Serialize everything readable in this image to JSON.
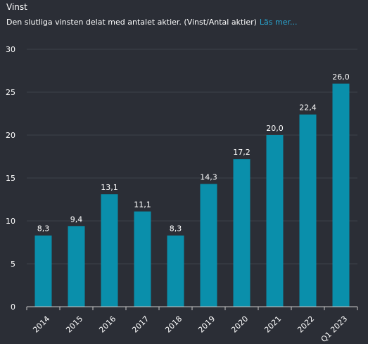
{
  "header": {
    "title": "Vinst",
    "subtitle": "Den slutliga vinsten delat med antalet aktier. (Vinst/Antal aktier)",
    "read_more": "Läs mer..."
  },
  "colors": {
    "background": "#2b2e36",
    "bar": "#0a8fab",
    "grid": "#3d414a",
    "axis": "#c8c8c8",
    "link": "#29a8d4"
  },
  "chart_data": {
    "type": "bar",
    "categories": [
      "2014",
      "2015",
      "2016",
      "2017",
      "2018",
      "2019",
      "2020",
      "2021",
      "2022",
      "Q1 2023"
    ],
    "values": [
      8.3,
      9.4,
      13.1,
      11.1,
      8.3,
      14.3,
      17.2,
      20.0,
      22.4,
      26.0
    ],
    "value_labels": [
      "8,3",
      "9,4",
      "13,1",
      "11,1",
      "8,3",
      "14,3",
      "17,2",
      "20,0",
      "22,4",
      "26,0"
    ],
    "yticks": [
      0,
      5,
      10,
      15,
      20,
      25,
      30
    ],
    "ylim": [
      0,
      30
    ],
    "grid": true,
    "legend": "none"
  }
}
